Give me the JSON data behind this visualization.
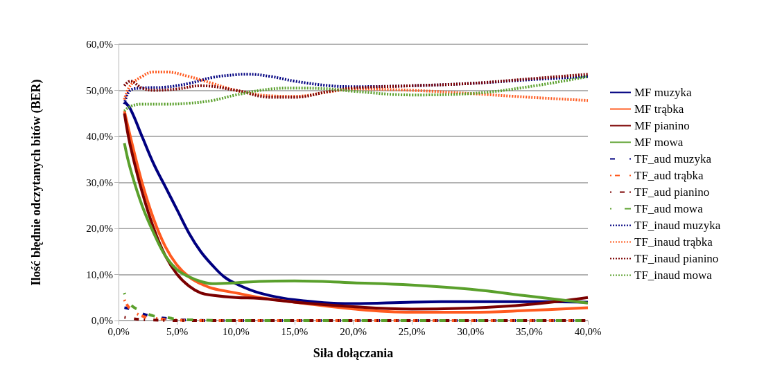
{
  "chart_data": {
    "type": "line",
    "xlabel": "Siła dołączania",
    "ylabel": "Ilość błędnie odczytanych bitów (BER)",
    "xlim": [
      0,
      40
    ],
    "xticks": [
      {
        "value": 0,
        "label": "0,0%"
      },
      {
        "value": 5,
        "label": "5,0%"
      },
      {
        "value": 10,
        "label": "10,0%"
      },
      {
        "value": 15,
        "label": "15,0%"
      },
      {
        "value": 20,
        "label": "20,0%"
      },
      {
        "value": 25,
        "label": "25,0%"
      },
      {
        "value": 30,
        "label": "30,0%"
      },
      {
        "value": 35,
        "label": "35,0%"
      },
      {
        "value": 40,
        "label": "40,0%"
      }
    ],
    "ylim": [
      0,
      60
    ],
    "yticks": [
      {
        "value": 0,
        "label": "0,0%"
      },
      {
        "value": 10,
        "label": "10,0%"
      },
      {
        "value": 20,
        "label": "20,0%"
      },
      {
        "value": 30,
        "label": "30,0%"
      },
      {
        "value": 40,
        "label": "40,0%"
      },
      {
        "value": 50,
        "label": "50,0%"
      },
      {
        "value": 60,
        "label": "60,0%"
      }
    ],
    "grid": "y",
    "legend": "right",
    "marker": "none",
    "series": [
      {
        "name": "MF muzyka",
        "color": "#000080",
        "line_style": "solid",
        "x": [
          0.5,
          1,
          2,
          3,
          4,
          5,
          6,
          7,
          8,
          9,
          10,
          12,
          15,
          20,
          25,
          30,
          35,
          40
        ],
        "values": [
          47.5,
          46,
          40,
          34,
          29,
          24,
          19,
          15,
          12,
          9.5,
          8,
          6,
          4.5,
          3.7,
          4,
          4.1,
          4.1,
          4
        ]
      },
      {
        "name": "MF trąbka",
        "color": "#ff5a1f",
        "line_style": "solid",
        "x": [
          0.5,
          1,
          2,
          3,
          4,
          5,
          6,
          7,
          8,
          10,
          12,
          15,
          20,
          25,
          30,
          35,
          40
        ],
        "values": [
          45.5,
          40,
          30,
          22,
          16,
          12,
          9.5,
          8,
          7,
          6,
          5,
          4,
          2.5,
          1.8,
          1.8,
          2.2,
          2.8
        ]
      },
      {
        "name": "MF pianino",
        "color": "#7b0000",
        "line_style": "solid",
        "x": [
          0.5,
          1,
          2,
          3,
          4,
          5,
          6,
          7,
          8,
          10,
          12,
          15,
          20,
          25,
          30,
          35,
          40
        ],
        "values": [
          45,
          38,
          28,
          20,
          14,
          10,
          7.5,
          6,
          5.5,
          5,
          4.8,
          4,
          3,
          2.5,
          2.7,
          3.5,
          5
        ]
      },
      {
        "name": "MF mowa",
        "color": "#5aa02c",
        "line_style": "solid",
        "x": [
          0.5,
          1,
          2,
          3,
          4,
          5,
          6,
          7,
          8,
          10,
          12,
          15,
          20,
          25,
          30,
          35,
          40
        ],
        "values": [
          38.5,
          33,
          25,
          19,
          14,
          11,
          9.5,
          8.5,
          8,
          8.2,
          8.5,
          8.6,
          8.2,
          7.7,
          6.8,
          5.3,
          3.8
        ]
      },
      {
        "name": "TF_aud muzyka",
        "color": "#000080",
        "line_style": "dashed",
        "x": [
          0.5,
          1,
          2,
          3,
          4,
          5,
          6,
          8,
          40
        ],
        "values": [
          2.8,
          2.5,
          1.5,
          0.8,
          0.5,
          0.2,
          0.1,
          0,
          0
        ]
      },
      {
        "name": "TF_aud trąbka",
        "color": "#ff5a1f",
        "line_style": "dashed",
        "x": [
          0.5,
          1,
          2,
          3,
          5,
          7,
          40
        ],
        "values": [
          4.5,
          2.5,
          1,
          0.5,
          0.1,
          0,
          0
        ]
      },
      {
        "name": "TF_aud pianino",
        "color": "#7b0000",
        "line_style": "dashed",
        "x": [
          0.5,
          1,
          2,
          3,
          5,
          40
        ],
        "values": [
          0.7,
          0.5,
          0.2,
          0.1,
          0,
          0
        ]
      },
      {
        "name": "TF_aud mowa",
        "color": "#5aa02c",
        "line_style": "dashed",
        "x": [
          0.5,
          1,
          2,
          3,
          4,
          5,
          7,
          10,
          40
        ],
        "values": [
          6,
          3.5,
          2,
          1,
          0.7,
          0.3,
          0.1,
          0,
          0
        ]
      },
      {
        "name": "TF_inaud muzyka",
        "color": "#000080",
        "line_style": "dotted",
        "x": [
          0.5,
          1,
          2,
          4,
          6,
          8,
          10,
          11,
          13,
          15,
          18,
          20,
          25,
          30,
          35,
          40
        ],
        "values": [
          47,
          50,
          50.5,
          50.7,
          51.5,
          52.8,
          53.4,
          53.5,
          53,
          52,
          51,
          50.8,
          51,
          51.5,
          52.3,
          53
        ]
      },
      {
        "name": "TF_inaud trąbka",
        "color": "#ff5a1f",
        "line_style": "dotted",
        "x": [
          0.5,
          1,
          2,
          3,
          4,
          6,
          8,
          10,
          13,
          15,
          18,
          20,
          25,
          30,
          35,
          40
        ],
        "values": [
          48,
          51,
          53,
          54,
          54,
          53,
          51.5,
          50,
          48.8,
          48.7,
          49.7,
          50.3,
          50,
          49.3,
          48.5,
          47.8
        ]
      },
      {
        "name": "TF_inaud pianino",
        "color": "#7b0000",
        "line_style": "dotted",
        "x": [
          0.5,
          1,
          2,
          3,
          5,
          7,
          10,
          13,
          15,
          18,
          20,
          25,
          30,
          35,
          40
        ],
        "values": [
          51,
          52,
          50.5,
          50,
          50.3,
          51,
          50,
          48.5,
          48.5,
          49.8,
          50.5,
          51,
          51.5,
          52.5,
          53.5
        ]
      },
      {
        "name": "TF_inaud mowa",
        "color": "#5aa02c",
        "line_style": "dotted",
        "x": [
          0.5,
          1,
          2,
          4,
          6,
          8,
          10,
          13,
          15,
          18,
          20,
          25,
          30,
          35,
          40
        ],
        "values": [
          45.5,
          46.5,
          47,
          47,
          47.2,
          47.8,
          49,
          50.3,
          50.5,
          50.3,
          49.8,
          49,
          49.3,
          50.8,
          53
        ]
      }
    ]
  }
}
